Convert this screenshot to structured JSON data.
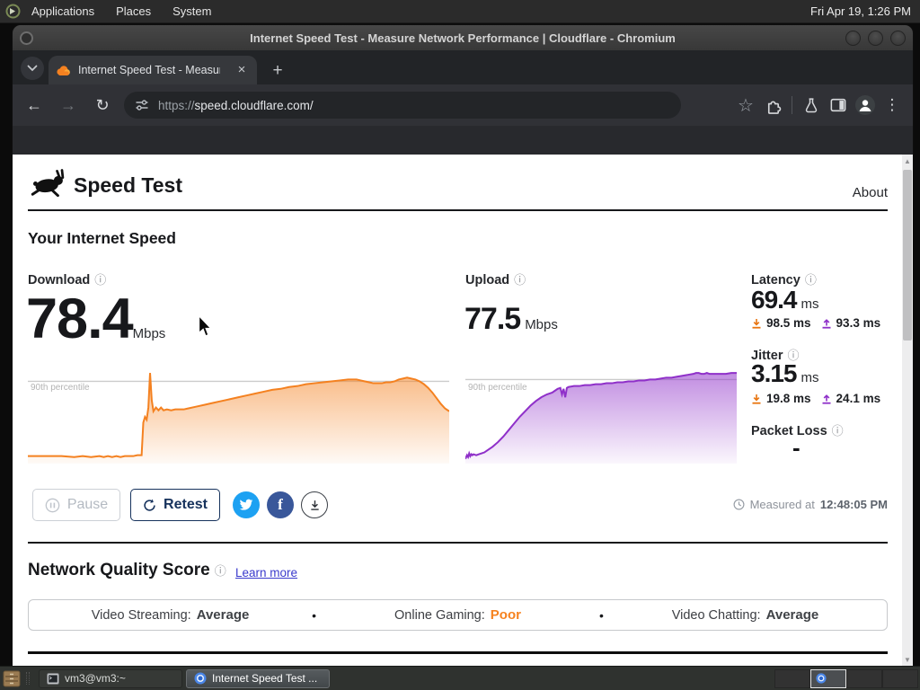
{
  "icons": {
    "info": "ⓘ",
    "star": "☆",
    "back": "←",
    "forward": "→",
    "reload": "↻",
    "menu": "⋮",
    "new_tab": "+",
    "close_tab": "×",
    "bullet": "•",
    "facebook_f": "f",
    "scroll_up": "▲",
    "scroll_down": "▼"
  },
  "desktop": {
    "menubar": {
      "items": [
        "Applications",
        "Places",
        "System"
      ],
      "clock": "Fri Apr 19, 1:26 PM"
    },
    "taskbar": {
      "tasks": [
        {
          "label": "vm3@vm3:~"
        },
        {
          "label": "Internet Speed Test ..."
        }
      ]
    }
  },
  "browser": {
    "window_title": "Internet Speed Test - Measure Network Performance | Cloudflare - Chromium",
    "tab_title": "Internet Speed Test - Measur",
    "url_scheme": "https://",
    "url_rest": "speed.cloudflare.com/"
  },
  "page": {
    "title": "Speed Test",
    "about_link": "About",
    "section_title": "Your Internet Speed",
    "download": {
      "label": "Download",
      "value": "78.4",
      "unit": "Mbps"
    },
    "upload": {
      "label": "Upload",
      "value": "77.5",
      "unit": "Mbps"
    },
    "latency": {
      "label": "Latency",
      "value": "69.4",
      "unit": "ms",
      "down_value": "98.5 ms",
      "up_value": "93.3 ms"
    },
    "jitter": {
      "label": "Jitter",
      "value": "3.15",
      "unit": "ms",
      "down_value": "19.8 ms",
      "up_value": "24.1 ms"
    },
    "packet_loss": {
      "label": "Packet Loss",
      "value": "-"
    },
    "percentile_label": "90th percentile",
    "pause_label": "Pause",
    "retest_label": "Retest",
    "measured_prefix": "Measured at",
    "measured_time": "12:48:05 PM",
    "nqs": {
      "title": "Network Quality Score",
      "learn_more": "Learn more",
      "items": [
        {
          "label": "Video Streaming:",
          "value": "Average",
          "color": "#3f4246"
        },
        {
          "label": "Online Gaming:",
          "value": "Poor",
          "color": "#f6821f"
        },
        {
          "label": "Video Chatting:",
          "value": "Average",
          "color": "#3f4246"
        }
      ]
    },
    "colors": {
      "accent_orange": "#f48120",
      "accent_purple": "#8f30c9",
      "retest_navy": "#16325c",
      "twitter_blue": "#1da1f2",
      "facebook_blue": "#39579a",
      "link_blue": "#3a3acc"
    }
  },
  "chart_data": [
    {
      "type": "area",
      "name": "download-throughput",
      "title": "Download throughput over test",
      "color": "#f48120",
      "percentile_line": 88,
      "annotation": "90th percentile",
      "ylim": [
        0,
        100
      ],
      "points": [
        [
          0,
          8
        ],
        [
          4,
          8
        ],
        [
          8,
          8
        ],
        [
          11,
          7
        ],
        [
          13,
          8
        ],
        [
          15,
          7
        ],
        [
          17,
          8
        ],
        [
          18,
          7
        ],
        [
          19,
          8
        ],
        [
          20,
          7
        ],
        [
          21,
          8
        ],
        [
          22,
          7
        ],
        [
          23,
          8
        ],
        [
          24,
          8
        ],
        [
          25,
          8
        ],
        [
          26,
          9
        ],
        [
          27,
          9
        ],
        [
          27.4,
          44
        ],
        [
          27.8,
          50
        ],
        [
          28.2,
          47
        ],
        [
          28.6,
          60
        ],
        [
          29,
          97
        ],
        [
          29.4,
          68
        ],
        [
          29.8,
          56
        ],
        [
          30.4,
          60
        ],
        [
          31,
          57
        ],
        [
          31.6,
          60
        ],
        [
          32.2,
          57
        ],
        [
          33,
          58
        ],
        [
          34,
          57
        ],
        [
          35,
          58
        ],
        [
          36,
          58
        ],
        [
          37,
          58
        ],
        [
          38,
          59
        ],
        [
          40,
          61
        ],
        [
          42,
          63
        ],
        [
          44,
          65
        ],
        [
          46,
          67
        ],
        [
          48,
          69
        ],
        [
          50,
          71
        ],
        [
          52,
          73
        ],
        [
          54,
          75
        ],
        [
          56,
          77
        ],
        [
          58,
          79
        ],
        [
          60,
          80
        ],
        [
          62,
          82
        ],
        [
          64,
          83
        ],
        [
          66,
          85
        ],
        [
          68,
          86
        ],
        [
          70,
          87
        ],
        [
          72,
          88
        ],
        [
          74,
          89
        ],
        [
          76,
          90
        ],
        [
          78,
          90
        ],
        [
          79,
          89
        ],
        [
          80,
          88
        ],
        [
          81,
          87
        ],
        [
          82,
          86
        ],
        [
          83,
          86
        ],
        [
          84,
          86
        ],
        [
          85,
          87
        ],
        [
          86,
          87
        ],
        [
          87,
          88
        ],
        [
          88,
          90
        ],
        [
          89,
          91
        ],
        [
          90,
          92
        ],
        [
          91,
          91
        ],
        [
          92,
          90
        ],
        [
          93,
          88
        ],
        [
          94,
          85
        ],
        [
          95,
          81
        ],
        [
          96,
          76
        ],
        [
          97,
          70
        ],
        [
          98,
          64
        ],
        [
          99,
          59
        ],
        [
          100,
          56
        ]
      ]
    },
    {
      "type": "area",
      "name": "upload-throughput",
      "title": "Upload throughput over test",
      "color": "#8f30c9",
      "percentile_line": 90,
      "annotation": "90th percentile",
      "ylim": [
        0,
        100
      ],
      "points": [
        [
          0,
          5
        ],
        [
          0.6,
          9
        ],
        [
          1,
          7
        ],
        [
          1.4,
          11
        ],
        [
          1.8,
          8
        ],
        [
          2.2,
          10
        ],
        [
          2.6,
          9
        ],
        [
          3,
          10
        ],
        [
          4,
          9
        ],
        [
          5,
          10
        ],
        [
          6,
          11
        ],
        [
          7,
          12
        ],
        [
          8,
          14
        ],
        [
          10,
          18
        ],
        [
          12,
          23
        ],
        [
          14,
          29
        ],
        [
          16,
          36
        ],
        [
          18,
          43
        ],
        [
          20,
          50
        ],
        [
          22,
          56
        ],
        [
          24,
          62
        ],
        [
          26,
          67
        ],
        [
          28,
          71
        ],
        [
          30,
          74
        ],
        [
          32,
          76
        ],
        [
          33,
          78
        ],
        [
          34,
          80
        ],
        [
          35,
          81
        ],
        [
          35.6,
          74
        ],
        [
          36.2,
          80
        ],
        [
          36.8,
          71
        ],
        [
          37.4,
          81
        ],
        [
          38,
          82
        ],
        [
          40,
          83
        ],
        [
          42,
          83
        ],
        [
          44,
          84
        ],
        [
          46,
          84
        ],
        [
          48,
          85
        ],
        [
          50,
          85
        ],
        [
          52,
          86
        ],
        [
          54,
          86
        ],
        [
          56,
          87
        ],
        [
          58,
          87
        ],
        [
          60,
          88
        ],
        [
          62,
          88
        ],
        [
          64,
          89
        ],
        [
          66,
          89
        ],
        [
          68,
          90
        ],
        [
          70,
          90
        ],
        [
          72,
          91
        ],
        [
          74,
          92
        ],
        [
          76,
          92
        ],
        [
          78,
          93
        ],
        [
          80,
          94
        ],
        [
          82,
          95
        ],
        [
          84,
          96
        ],
        [
          85,
          97
        ],
        [
          86,
          97
        ],
        [
          87,
          96
        ],
        [
          88,
          96
        ],
        [
          89,
          97
        ],
        [
          90,
          96
        ],
        [
          92,
          96
        ],
        [
          94,
          96
        ],
        [
          96,
          96
        ],
        [
          98,
          97
        ],
        [
          100,
          97
        ]
      ]
    }
  ]
}
